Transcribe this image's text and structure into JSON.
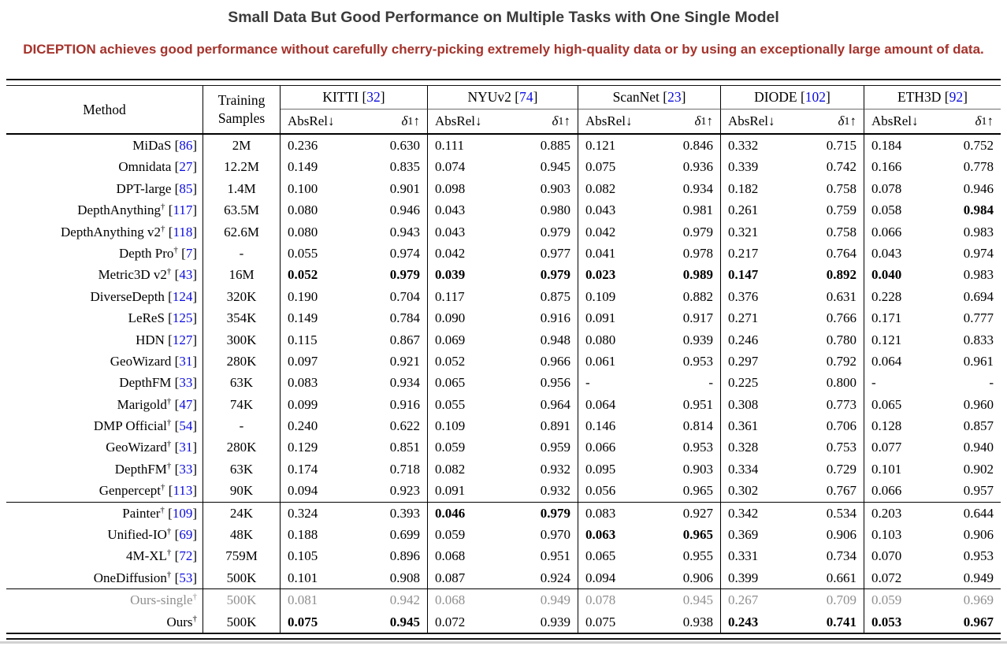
{
  "title": "Small Data But Good Performance on Multiple Tasks with One Single Model",
  "subtitle": "DICEPTION achieves good performance without carefully cherry-picking extremely high-quality data or by using an exceptionally large amount of data.",
  "colors": {
    "title_gray": "#3b3b3b",
    "subtitle_red": "#a5332c",
    "citation_blue": "#0a0ae0",
    "muted_row_gray": "#8f8f8f"
  },
  "table": {
    "method_header": "Method",
    "training_header_line1": "Training",
    "training_header_line2": "Samples",
    "cite_open": "[",
    "cite_close": "]",
    "metric": {
      "absrel_label": "AbsRel",
      "down_arrow": "↓",
      "delta_symbol": "δ",
      "delta_sub": "1",
      "up_arrow": "↑"
    },
    "datasets": [
      {
        "name": "KITTI",
        "cite": "32"
      },
      {
        "name": "NYUv2",
        "cite": "74"
      },
      {
        "name": "ScanNet",
        "cite": "23"
      },
      {
        "name": "DIODE",
        "cite": "102"
      },
      {
        "name": "ETH3D",
        "cite": "92"
      }
    ],
    "rows": [
      {
        "method": "MiDaS",
        "sup": "",
        "cite": "86",
        "samples": "2M",
        "vals": [
          "0.236",
          "0.630",
          "0.111",
          "0.885",
          "0.121",
          "0.846",
          "0.332",
          "0.715",
          "0.184",
          "0.752"
        ],
        "bold": [],
        "gray": false,
        "rule_before": false
      },
      {
        "method": "Omnidata",
        "sup": "",
        "cite": "27",
        "samples": "12.2M",
        "vals": [
          "0.149",
          "0.835",
          "0.074",
          "0.945",
          "0.075",
          "0.936",
          "0.339",
          "0.742",
          "0.166",
          "0.778"
        ],
        "bold": [],
        "gray": false,
        "rule_before": false
      },
      {
        "method": "DPT-large",
        "sup": "",
        "cite": "85",
        "samples": "1.4M",
        "vals": [
          "0.100",
          "0.901",
          "0.098",
          "0.903",
          "0.082",
          "0.934",
          "0.182",
          "0.758",
          "0.078",
          "0.946"
        ],
        "bold": [],
        "gray": false,
        "rule_before": false
      },
      {
        "method": "DepthAnything",
        "sup": "†",
        "cite": "117",
        "samples": "63.5M",
        "vals": [
          "0.080",
          "0.946",
          "0.043",
          "0.980",
          "0.043",
          "0.981",
          "0.261",
          "0.759",
          "0.058",
          "0.984"
        ],
        "bold": [
          9
        ],
        "gray": false,
        "rule_before": false
      },
      {
        "method": "DepthAnything v2",
        "sup": "†",
        "cite": "118",
        "samples": "62.6M",
        "vals": [
          "0.080",
          "0.943",
          "0.043",
          "0.979",
          "0.042",
          "0.979",
          "0.321",
          "0.758",
          "0.066",
          "0.983"
        ],
        "bold": [],
        "gray": false,
        "rule_before": false
      },
      {
        "method": "Depth Pro",
        "sup": "†",
        "cite": "7",
        "samples": "-",
        "vals": [
          "0.055",
          "0.974",
          "0.042",
          "0.977",
          "0.041",
          "0.978",
          "0.217",
          "0.764",
          "0.043",
          "0.974"
        ],
        "bold": [],
        "gray": false,
        "rule_before": false
      },
      {
        "method": "Metric3D v2",
        "sup": "†",
        "cite": "43",
        "samples": "16M",
        "vals": [
          "0.052",
          "0.979",
          "0.039",
          "0.979",
          "0.023",
          "0.989",
          "0.147",
          "0.892",
          "0.040",
          "0.983"
        ],
        "bold": [
          0,
          1,
          2,
          3,
          4,
          5,
          6,
          7,
          8
        ],
        "gray": false,
        "rule_before": false
      },
      {
        "method": "DiverseDepth",
        "sup": "",
        "cite": "124",
        "samples": "320K",
        "vals": [
          "0.190",
          "0.704",
          "0.117",
          "0.875",
          "0.109",
          "0.882",
          "0.376",
          "0.631",
          "0.228",
          "0.694"
        ],
        "bold": [],
        "gray": false,
        "rule_before": false
      },
      {
        "method": "LeReS",
        "sup": "",
        "cite": "125",
        "samples": "354K",
        "vals": [
          "0.149",
          "0.784",
          "0.090",
          "0.916",
          "0.091",
          "0.917",
          "0.271",
          "0.766",
          "0.171",
          "0.777"
        ],
        "bold": [],
        "gray": false,
        "rule_before": false
      },
      {
        "method": "HDN",
        "sup": "",
        "cite": "127",
        "samples": "300K",
        "vals": [
          "0.115",
          "0.867",
          "0.069",
          "0.948",
          "0.080",
          "0.939",
          "0.246",
          "0.780",
          "0.121",
          "0.833"
        ],
        "bold": [],
        "gray": false,
        "rule_before": false
      },
      {
        "method": "GeoWizard",
        "sup": "",
        "cite": "31",
        "samples": "280K",
        "vals": [
          "0.097",
          "0.921",
          "0.052",
          "0.966",
          "0.061",
          "0.953",
          "0.297",
          "0.792",
          "0.064",
          "0.961"
        ],
        "bold": [],
        "gray": false,
        "rule_before": false
      },
      {
        "method": "DepthFM",
        "sup": "",
        "cite": "33",
        "samples": "63K",
        "vals": [
          "0.083",
          "0.934",
          "0.065",
          "0.956",
          "-",
          "-",
          "0.225",
          "0.800",
          "-",
          "-"
        ],
        "bold": [],
        "gray": false,
        "rule_before": false
      },
      {
        "method": "Marigold",
        "sup": "†",
        "cite": "47",
        "samples": "74K",
        "vals": [
          "0.099",
          "0.916",
          "0.055",
          "0.964",
          "0.064",
          "0.951",
          "0.308",
          "0.773",
          "0.065",
          "0.960"
        ],
        "bold": [],
        "gray": false,
        "rule_before": false
      },
      {
        "method": "DMP Official",
        "sup": "†",
        "cite": "54",
        "samples": "-",
        "vals": [
          "0.240",
          "0.622",
          "0.109",
          "0.891",
          "0.146",
          "0.814",
          "0.361",
          "0.706",
          "0.128",
          "0.857"
        ],
        "bold": [],
        "gray": false,
        "rule_before": false
      },
      {
        "method": "GeoWizard",
        "sup": "†",
        "cite": "31",
        "samples": "280K",
        "vals": [
          "0.129",
          "0.851",
          "0.059",
          "0.959",
          "0.066",
          "0.953",
          "0.328",
          "0.753",
          "0.077",
          "0.940"
        ],
        "bold": [],
        "gray": false,
        "rule_before": false
      },
      {
        "method": "DepthFM",
        "sup": "†",
        "cite": "33",
        "samples": "63K",
        "vals": [
          "0.174",
          "0.718",
          "0.082",
          "0.932",
          "0.095",
          "0.903",
          "0.334",
          "0.729",
          "0.101",
          "0.902"
        ],
        "bold": [],
        "gray": false,
        "rule_before": false
      },
      {
        "method": "Genpercept",
        "sup": "†",
        "cite": "113",
        "samples": "90K",
        "vals": [
          "0.094",
          "0.923",
          "0.091",
          "0.932",
          "0.056",
          "0.965",
          "0.302",
          "0.767",
          "0.066",
          "0.957"
        ],
        "bold": [],
        "gray": false,
        "rule_before": false
      },
      {
        "method": "Painter",
        "sup": "†",
        "cite": "109",
        "samples": "24K",
        "vals": [
          "0.324",
          "0.393",
          "0.046",
          "0.979",
          "0.083",
          "0.927",
          "0.342",
          "0.534",
          "0.203",
          "0.644"
        ],
        "bold": [
          2,
          3
        ],
        "gray": false,
        "rule_before": true
      },
      {
        "method": "Unified-IO",
        "sup": "†",
        "cite": "69",
        "samples": "48K",
        "vals": [
          "0.188",
          "0.699",
          "0.059",
          "0.970",
          "0.063",
          "0.965",
          "0.369",
          "0.906",
          "0.103",
          "0.906"
        ],
        "bold": [
          4,
          5
        ],
        "gray": false,
        "rule_before": false
      },
      {
        "method": "4M-XL",
        "sup": "†",
        "cite": "72",
        "samples": "759M",
        "vals": [
          "0.105",
          "0.896",
          "0.068",
          "0.951",
          "0.065",
          "0.955",
          "0.331",
          "0.734",
          "0.070",
          "0.953"
        ],
        "bold": [],
        "gray": false,
        "rule_before": false
      },
      {
        "method": "OneDiffusion",
        "sup": "†",
        "cite": "53",
        "samples": "500K",
        "vals": [
          "0.101",
          "0.908",
          "0.087",
          "0.924",
          "0.094",
          "0.906",
          "0.399",
          "0.661",
          "0.072",
          "0.949"
        ],
        "bold": [],
        "gray": false,
        "rule_before": false
      },
      {
        "method": "Ours-single",
        "sup": "†",
        "cite": null,
        "samples": "500K",
        "vals": [
          "0.081",
          "0.942",
          "0.068",
          "0.949",
          "0.078",
          "0.945",
          "0.267",
          "0.709",
          "0.059",
          "0.969"
        ],
        "bold": [],
        "gray": true,
        "rule_before": true
      },
      {
        "method": "Ours",
        "sup": "†",
        "cite": null,
        "samples": "500K",
        "vals": [
          "0.075",
          "0.945",
          "0.072",
          "0.939",
          "0.075",
          "0.938",
          "0.243",
          "0.741",
          "0.053",
          "0.967"
        ],
        "bold": [
          0,
          1,
          6,
          7,
          8,
          9
        ],
        "gray": false,
        "rule_before": false
      }
    ]
  }
}
